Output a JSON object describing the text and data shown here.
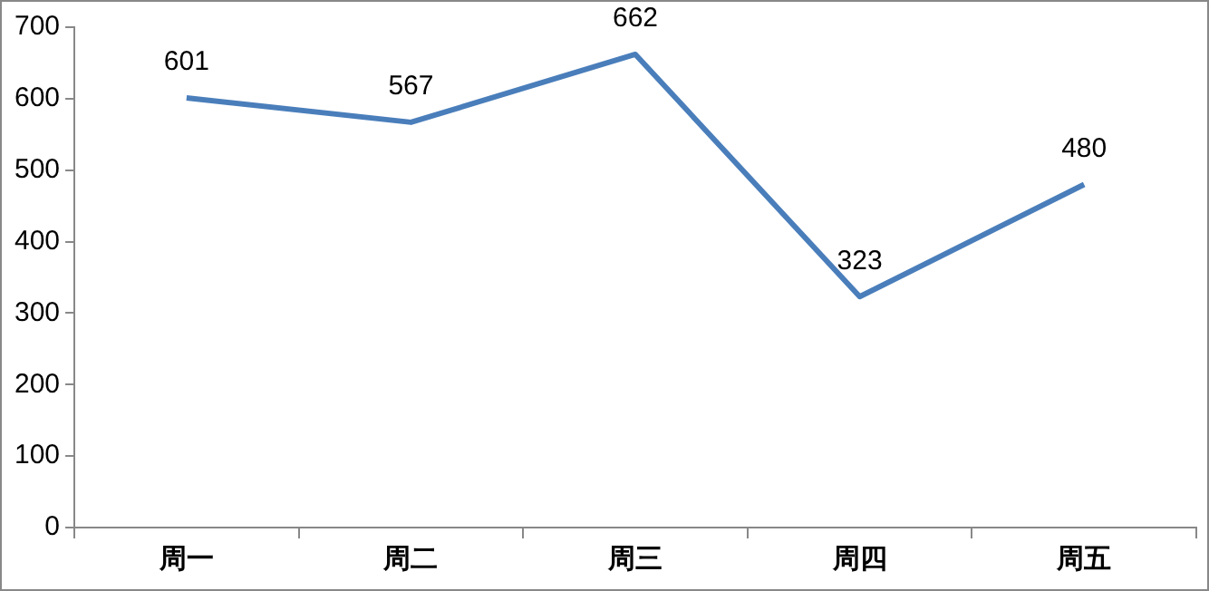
{
  "chart_data": {
    "type": "line",
    "categories": [
      "周一",
      "周二",
      "周三",
      "周四",
      "周五"
    ],
    "series": [
      {
        "color": "#4a7ebb",
        "values": [
          601,
          567,
          662,
          323,
          480
        ]
      }
    ],
    "ylim": [
      0,
      700
    ],
    "yticks": [
      0,
      100,
      200,
      300,
      400,
      500,
      600,
      700
    ],
    "grid": false,
    "legend": false,
    "marker": "none",
    "line_style": "solid",
    "data_labels": true
  }
}
